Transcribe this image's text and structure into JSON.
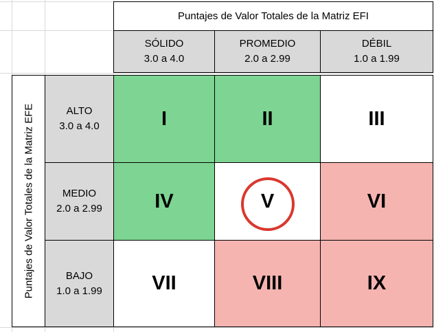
{
  "top_header": "Puntajes de Valor Totales de la Matriz EFI",
  "side_header": "Puntajes de Valor Totales de la Matriz EFE",
  "columns": [
    {
      "label": "SÓLIDO",
      "range": "3.0 a 4.0"
    },
    {
      "label": "PROMEDIO",
      "range": "2.0 a 2.99"
    },
    {
      "label": "DÉBIL",
      "range": "1.0 a 1.99"
    }
  ],
  "rows": [
    {
      "label": "ALTO",
      "range": "3.0 a 4.0"
    },
    {
      "label": "MEDIO",
      "range": "2.0 a 2.99"
    },
    {
      "label": "BAJO",
      "range": "1.0 a 1.99"
    }
  ],
  "cells": [
    {
      "label": "I",
      "color": "#7ed492"
    },
    {
      "label": "II",
      "color": "#7ed492"
    },
    {
      "label": "III",
      "color": "#ffffff"
    },
    {
      "label": "IV",
      "color": "#7ed492"
    },
    {
      "label": "V",
      "color": "#ffffff",
      "highlighted": true
    },
    {
      "label": "VI",
      "color": "#f5b4b0"
    },
    {
      "label": "VII",
      "color": "#ffffff"
    },
    {
      "label": "VIII",
      "color": "#f5b4b0"
    },
    {
      "label": "IX",
      "color": "#f5b4b0"
    }
  ],
  "highlight_color": "#d9382e"
}
